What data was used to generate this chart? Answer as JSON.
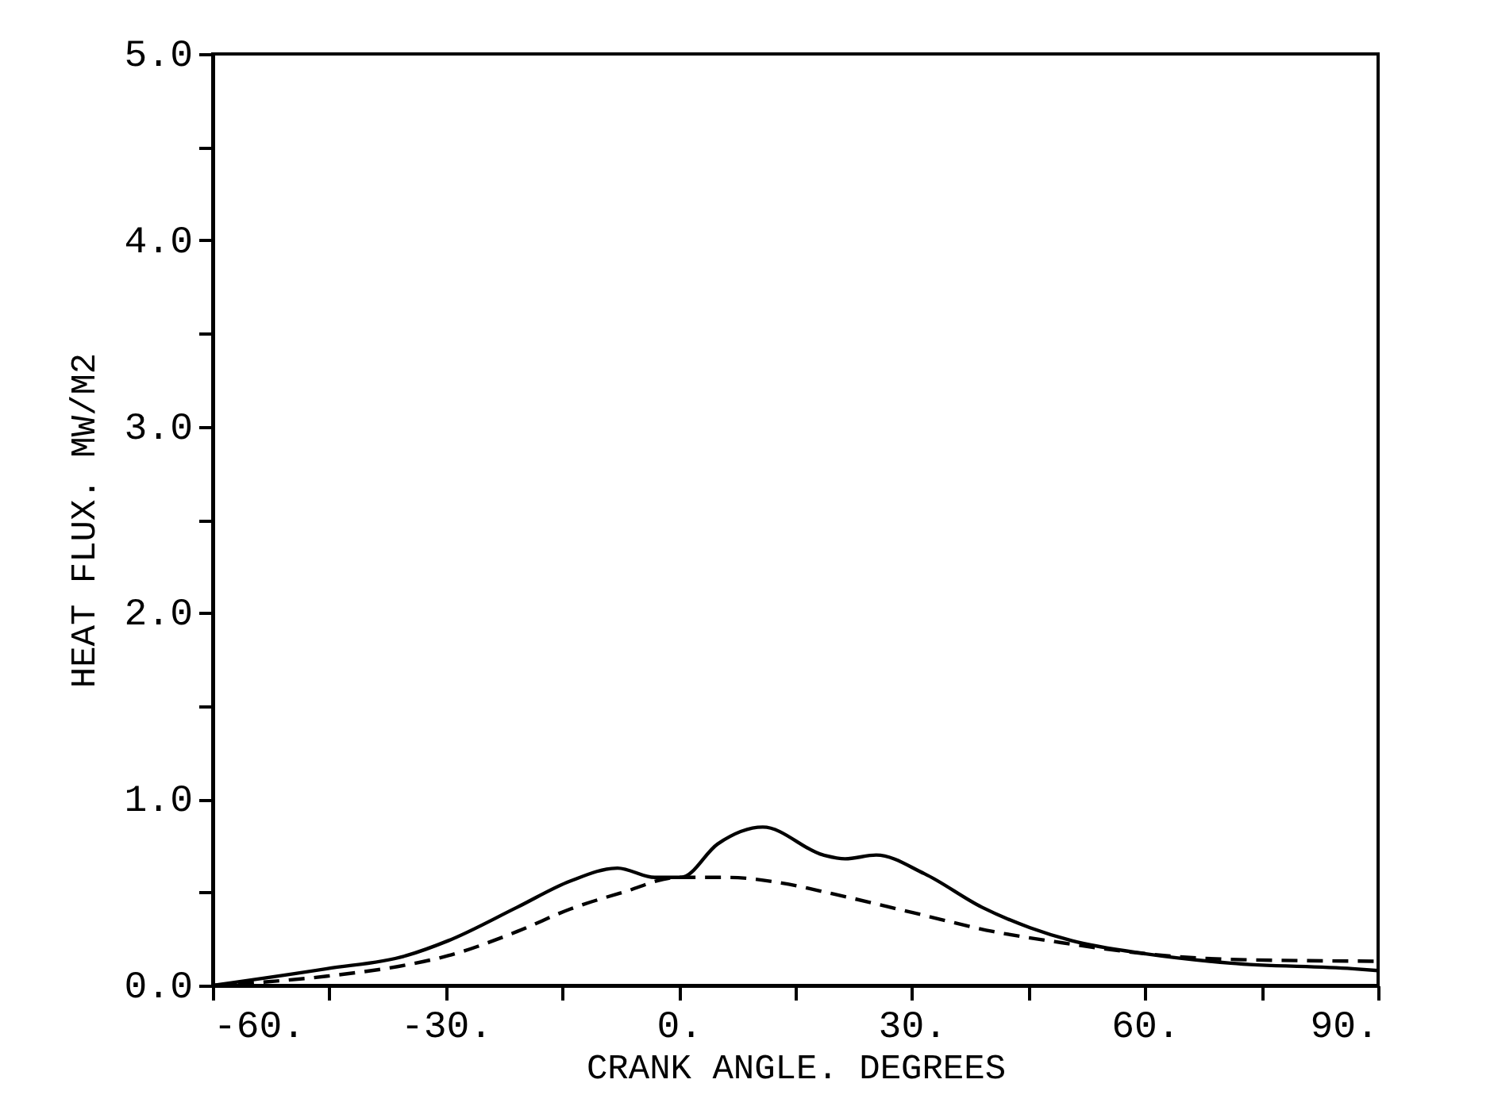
{
  "chart_data": {
    "type": "line",
    "xlabel": "CRANK ANGLE. DEGREES",
    "ylabel": "HEAT FLUX.  MW/M2",
    "xlim": [
      -60,
      90
    ],
    "ylim": [
      0,
      5
    ],
    "xticks": [
      {
        "value": -60,
        "label": "-60."
      },
      {
        "value": -45,
        "label": null
      },
      {
        "value": -30,
        "label": "-30."
      },
      {
        "value": -15,
        "label": null
      },
      {
        "value": 0,
        "label": "0."
      },
      {
        "value": 15,
        "label": null
      },
      {
        "value": 30,
        "label": "30."
      },
      {
        "value": 45,
        "label": null
      },
      {
        "value": 60,
        "label": "60."
      },
      {
        "value": 75,
        "label": null
      },
      {
        "value": 90,
        "label": "90."
      }
    ],
    "yticks": [
      {
        "value": 0,
        "label": "0.0"
      },
      {
        "value": 0.5,
        "label": null
      },
      {
        "value": 1,
        "label": "1.0"
      },
      {
        "value": 1.5,
        "label": null
      },
      {
        "value": 2,
        "label": "2.0"
      },
      {
        "value": 2.5,
        "label": null
      },
      {
        "value": 3,
        "label": "3.0"
      },
      {
        "value": 3.5,
        "label": null
      },
      {
        "value": 4,
        "label": "4.0"
      },
      {
        "value": 4.5,
        "label": null
      },
      {
        "value": 5,
        "label": "5.0"
      }
    ],
    "grid": false,
    "series": [
      {
        "color": "#000000",
        "line_style": "solid",
        "x": [
          -60,
          -45.3,
          -35.1,
          -29.7,
          -20.8,
          -14,
          -7.9,
          -3.1,
          0.3,
          5,
          10.8,
          18.6,
          21.4,
          25.4,
          31.6,
          39,
          45.2,
          50.6,
          60.1,
          71,
          86.7,
          90
        ],
        "values": [
          0,
          0.09,
          0.16,
          0.24,
          0.42,
          0.56,
          0.63,
          0.58,
          0.58,
          0.76,
          0.85,
          0.7,
          0.68,
          0.7,
          0.6,
          0.42,
          0.31,
          0.24,
          0.17,
          0.12,
          0.09,
          0.08
        ]
      },
      {
        "color": "#000000",
        "line_style": "dashed",
        "x": [
          -60,
          -45.3,
          -35.1,
          -29.7,
          -20.8,
          -14,
          -7.2,
          -0.1,
          6.4,
          13.2,
          20,
          30.2,
          40.4,
          49.2,
          60.1,
          71,
          90
        ],
        "values": [
          0,
          0.05,
          0.11,
          0.16,
          0.29,
          0.41,
          0.5,
          0.58,
          0.58,
          0.55,
          0.49,
          0.39,
          0.29,
          0.23,
          0.17,
          0.14,
          0.13
        ]
      }
    ]
  }
}
